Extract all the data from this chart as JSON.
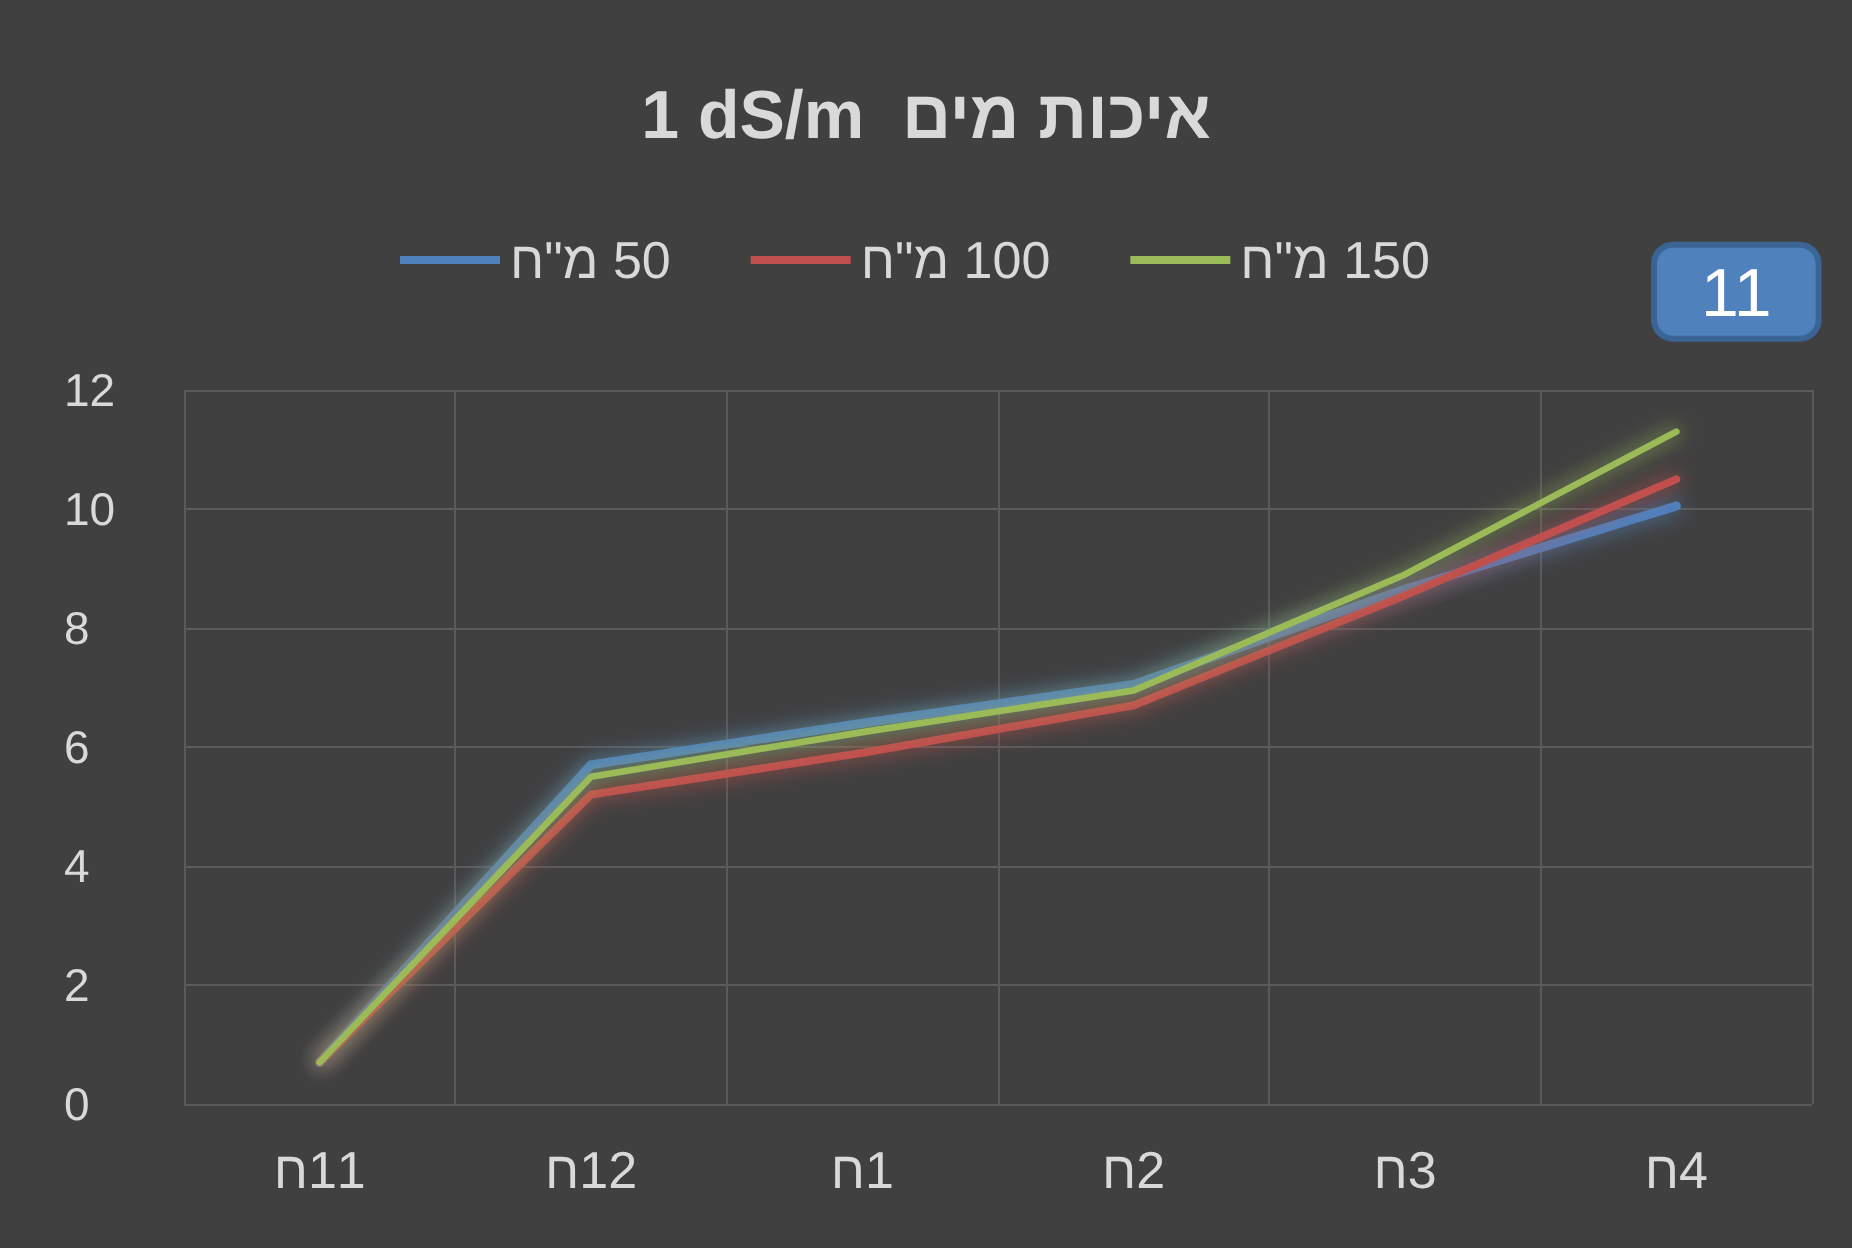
{
  "chart_data": {
    "type": "line",
    "title": "1 dS/m  איכות מים",
    "categories": [
      "11ח",
      "12ח",
      "1ח",
      "2ח",
      "3ח",
      "4ח"
    ],
    "series": [
      {
        "name": "50 מ\"ח",
        "color": "#4f81bd",
        "values": [
          0.7,
          5.7,
          6.4,
          7.05,
          8.65,
          10.05
        ]
      },
      {
        "name": "100 מ\"ח",
        "color": "#c0504d",
        "values": [
          0.7,
          5.2,
          5.9,
          6.7,
          8.55,
          10.5
        ]
      },
      {
        "name": "150 מ\"ח",
        "color": "#9bbb59",
        "values": [
          0.7,
          5.5,
          6.25,
          6.95,
          8.9,
          11.3
        ],
        "value_labels": [
          null,
          null,
          null,
          null,
          null,
          "11"
        ]
      }
    ],
    "ylim": [
      0,
      12
    ],
    "yticks": [
      0,
      2,
      4,
      6,
      8,
      10,
      12
    ],
    "grid": true,
    "legend": "top",
    "line_style": "solid"
  }
}
